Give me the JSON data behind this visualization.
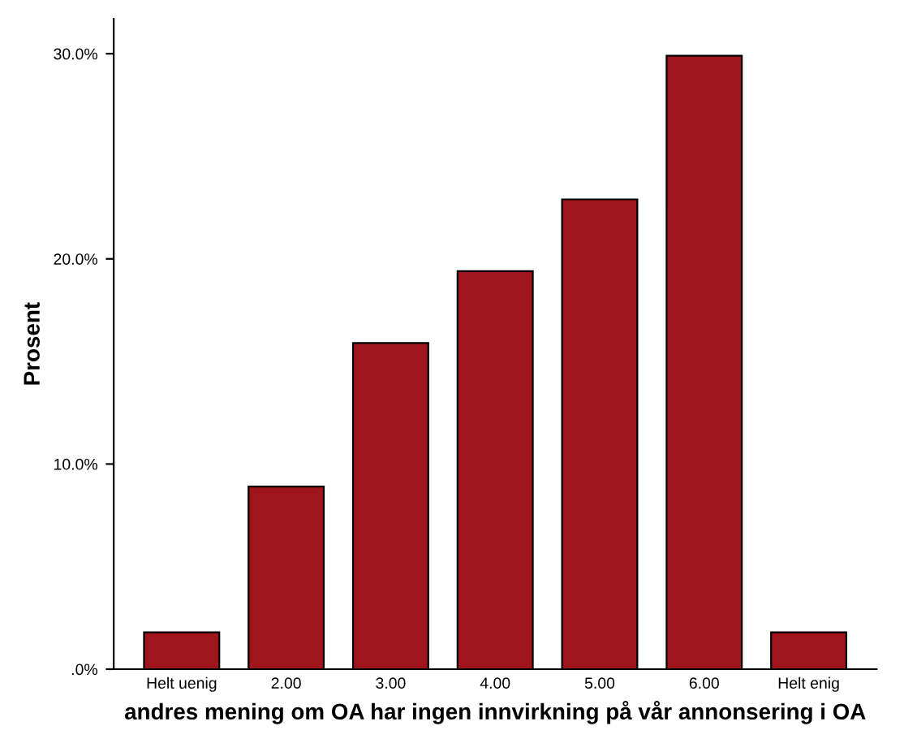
{
  "chart_data": {
    "type": "bar",
    "xlabel": "andres mening om OA har ingen innvirkning på vår annonsering i OA",
    "ylabel": "Prosent",
    "categories": [
      "Helt uenig",
      "2.00",
      "3.00",
      "4.00",
      "5.00",
      "6.00",
      "Helt enig"
    ],
    "values": [
      1.8,
      8.9,
      15.9,
      19.4,
      22.9,
      29.9,
      1.8
    ],
    "color": "#a0151b",
    "ylim": [
      0,
      31.7
    ],
    "yticks": [
      {
        "value": 0,
        "label": ".0%"
      },
      {
        "value": 10,
        "label": "10.0%"
      },
      {
        "value": 20,
        "label": "20.0%"
      },
      {
        "value": 30,
        "label": "30.0%"
      }
    ],
    "grid": false
  }
}
